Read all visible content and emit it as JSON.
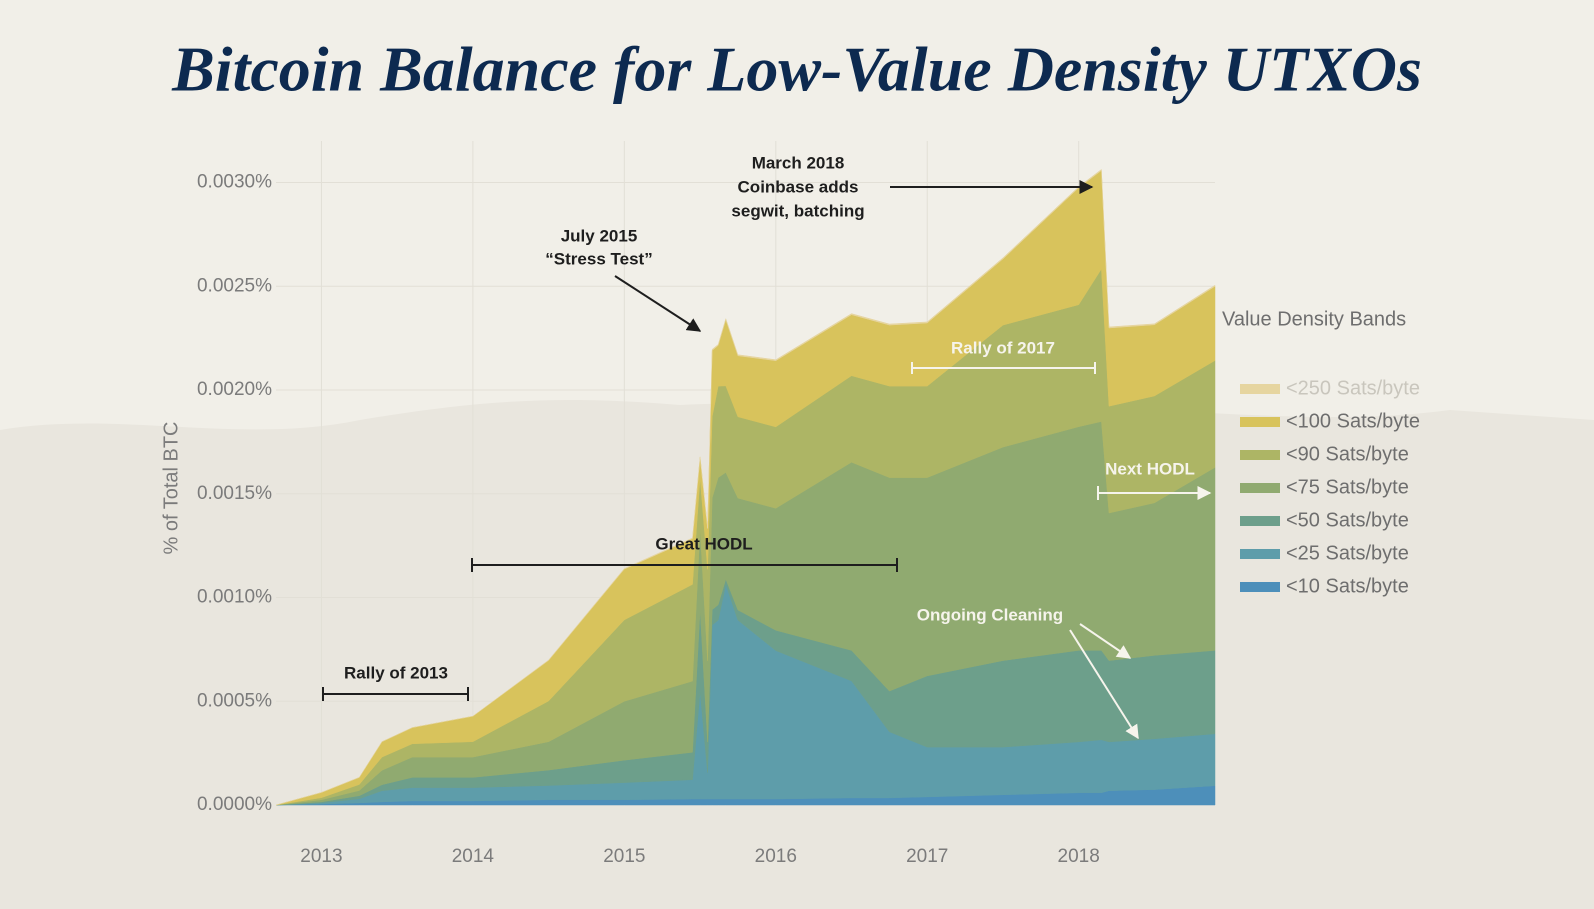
{
  "chart_data": {
    "type": "stacked_area",
    "title": "Bitcoin Balance for Low-Value Density UTXOs",
    "y_label": "% of Total BTC",
    "legend_title": "Value Density Bands",
    "x": [
      2012.7,
      2013.0,
      2013.25,
      2013.4,
      2013.6,
      2014.0,
      2014.5,
      2015.0,
      2015.45,
      2015.5,
      2015.55,
      2015.58,
      2015.62,
      2015.67,
      2015.75,
      2016.0,
      2016.5,
      2016.75,
      2017.0,
      2017.5,
      2018.0,
      2018.15,
      2018.2,
      2018.5,
      2018.9
    ],
    "xlim": [
      2012.7,
      2018.9
    ],
    "xticks": [
      2013,
      2014,
      2015,
      2016,
      2017,
      2018
    ],
    "ylim": [
      0,
      0.0032
    ],
    "yticks": [
      {
        "value": 0,
        "label": "0.0000%"
      },
      {
        "value": 0.0005,
        "label": "0.0005%"
      },
      {
        "value": 0.001,
        "label": "0.0010%"
      },
      {
        "value": 0.0015,
        "label": "0.0015%"
      },
      {
        "value": 0.002,
        "label": "0.0020%"
      },
      {
        "value": 0.0025,
        "label": "0.0025%"
      },
      {
        "value": 0.003,
        "label": "0.0030%"
      }
    ],
    "grid": true,
    "series": [
      {
        "name": "<10 Sats/byte",
        "color": "#4d8fba",
        "values": [
          0,
          5e-06,
          1e-05,
          1.5e-05,
          2e-05,
          2e-05,
          2.5e-05,
          2.5e-05,
          2.9e-05,
          2.9e-05,
          2.9e-05,
          2.9e-05,
          2.9e-05,
          2.9e-05,
          2.9e-05,
          2.9e-05,
          3.4e-05,
          3.4e-05,
          3.9e-05,
          4.9e-05,
          5.9e-05,
          5.9e-05,
          6.9e-05,
          7.4e-05,
          9.3e-05
        ]
      },
      {
        "name": "<25 Sats/byte",
        "color": "#5e9daa",
        "values": [
          0,
          5e-06,
          2e-05,
          5.4e-05,
          6.4e-05,
          6.4e-05,
          6.9e-05,
          8.3e-05,
          9.3e-05,
          0.000519,
          0.000127,
          0.000838,
          0.000862,
          0.001034,
          0.000862,
          0.000715,
          0.000564,
          0.000319,
          0.00024,
          0.00023,
          0.000245,
          0.000255,
          0.000235,
          0.000245,
          0.00025
        ]
      },
      {
        "name": "<50 Sats/byte",
        "color": "#6d9f8b",
        "values": [
          0,
          5e-06,
          1.5e-05,
          2.9e-05,
          4.9e-05,
          4.9e-05,
          7.4e-05,
          0.000108,
          0.000132,
          0.000392,
          0.000147,
          7.4e-05,
          7.4e-05,
          2.5e-05,
          4.9e-05,
          9.8e-05,
          0.000147,
          0.000196,
          0.000343,
          0.000417,
          0.000441,
          0.000431,
          0.000392,
          0.000402,
          0.000402
        ]
      },
      {
        "name": "<75 Sats/byte",
        "color": "#90aa70",
        "values": [
          0,
          1e-05,
          2.5e-05,
          6.9e-05,
          9.8e-05,
          9.8e-05,
          0.000137,
          0.000284,
          0.000343,
          0.000392,
          0.000392,
          0.000539,
          0.000613,
          0.000515,
          0.000539,
          0.000588,
          0.000907,
          0.001029,
          0.000956,
          0.001029,
          0.001078,
          0.001103,
          0.000711,
          0.000735,
          0.000882
        ]
      },
      {
        "name": "<90 Sats/byte",
        "color": "#adb565",
        "values": [
          0,
          1e-05,
          2.9e-05,
          6.4e-05,
          6.4e-05,
          7.4e-05,
          0.000196,
          0.000392,
          0.000466,
          0.000245,
          0.000441,
          0.000392,
          0.000441,
          0.000417,
          0.000392,
          0.000392,
          0.000417,
          0.000441,
          0.000441,
          0.000588,
          0.000588,
          0.000735,
          0.000515,
          0.000515,
          0.000515
        ]
      },
      {
        "name": "<100 Sats/byte",
        "color": "#d8c35c",
        "values": [
          0,
          2.5e-05,
          3.4e-05,
          7.4e-05,
          7.8e-05,
          0.000123,
          0.000196,
          0.000245,
          0.000221,
          9.8e-05,
          0.000196,
          0.000319,
          0.000196,
          0.000319,
          0.000294,
          0.000319,
          0.000294,
          0.000294,
          0.000304,
          0.000319,
          0.000564,
          0.000475,
          0.000377,
          0.000343,
          0.000358
        ]
      },
      {
        "name": "<250 Sats/byte",
        "color": "#e6d5a0",
        "values": [
          0,
          0,
          0,
          0,
          0,
          0,
          2e-06,
          3e-06,
          3e-06,
          3e-06,
          3e-06,
          5e-06,
          5e-06,
          5e-06,
          5e-06,
          5e-06,
          5e-06,
          5e-06,
          5e-06,
          5e-06,
          5e-06,
          5e-06,
          5e-06,
          5e-06,
          5e-06
        ]
      }
    ],
    "annotations": {
      "march_2018": [
        "March 2018",
        "Coinbase adds",
        "segwit, batching"
      ],
      "july_2015": [
        "July 2015",
        "“Stress Test”"
      ],
      "rally_2017": "Rally of 2017",
      "next_hodl": "Next HODL",
      "great_hodl": "Great HODL",
      "rally_2013": "Rally of 2013",
      "ongoing_cleaning": "Ongoing Cleaning"
    }
  }
}
